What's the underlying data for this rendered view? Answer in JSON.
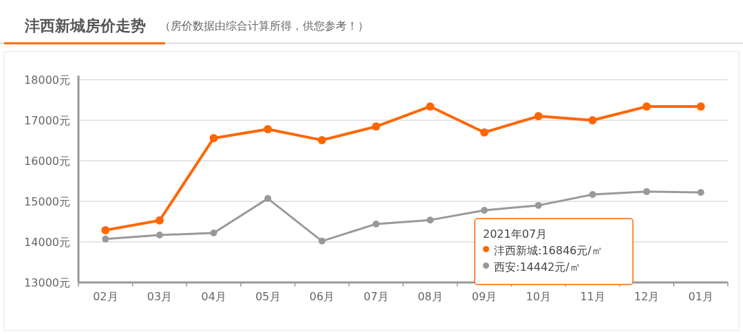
{
  "chart_data": {
    "type": "line",
    "title": "沣西新城房价走势",
    "subtitle": "（房价数据由综合计算所得，供您参考！）",
    "categories": [
      "02月",
      "03月",
      "04月",
      "05月",
      "06月",
      "07月",
      "08月",
      "09月",
      "10月",
      "11月",
      "12月",
      "01月"
    ],
    "series": [
      {
        "name": "沣西新城",
        "color": "#ff6600",
        "values": [
          14290,
          14530,
          16560,
          16780,
          16510,
          16846,
          17340,
          16700,
          17100,
          17000,
          17340,
          17340
        ]
      },
      {
        "name": "西安",
        "color": "#999999",
        "values": [
          14070,
          14170,
          14220,
          15070,
          14020,
          14442,
          14540,
          14780,
          14900,
          15170,
          15240,
          15220
        ]
      }
    ],
    "ylim": [
      13000,
      18000
    ],
    "yticks": [
      {
        "value": 13000,
        "label": "13000元"
      },
      {
        "value": 14000,
        "label": "14000元"
      },
      {
        "value": 15000,
        "label": "15000元"
      },
      {
        "value": 16000,
        "label": "16000元"
      },
      {
        "value": 17000,
        "label": "17000元"
      },
      {
        "value": 18000,
        "label": "18000元"
      }
    ],
    "grid": "y",
    "legend": "bottom right",
    "marker": "circle",
    "line_style": "solid",
    "annotations": [
      "2021年07月",
      ":16846元/㎡",
      ":14442元/㎡"
    ]
  }
}
